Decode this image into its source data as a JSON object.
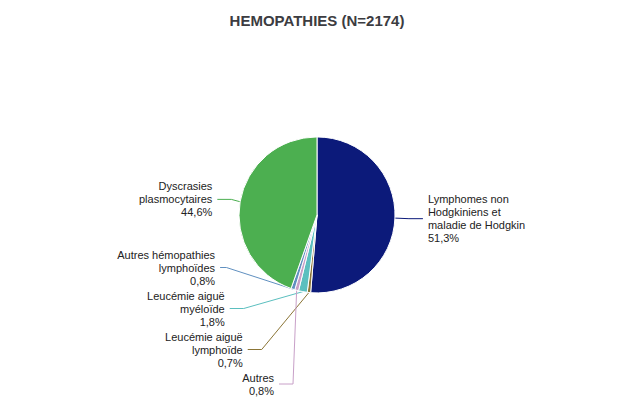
{
  "chart_data": {
    "type": "pie",
    "title": "HEMOPATHIES (N=2174)",
    "categories": [
      "Lymphomes non\nHodgkiniens et\nmaladie de Hodgkin",
      "Leucémie aiguë\nlymphoïde",
      "Leucémie aiguë\nmyéloïde",
      "Autres",
      "Autres hémopathies\nlymphoïdes",
      "Dyscrasies\nplasmocytaires"
    ],
    "values": [
      51.3,
      0.7,
      1.8,
      0.8,
      0.8,
      44.6
    ],
    "value_labels": [
      "51,3%",
      "0,7%",
      "1,8%",
      "0,8%",
      "0,8%",
      "44,6%"
    ],
    "colors": [
      "#0C1A7A",
      "#8B7536",
      "#5BBFBF",
      "#C8A0C8",
      "#6090C0",
      "#4CAF50"
    ]
  }
}
